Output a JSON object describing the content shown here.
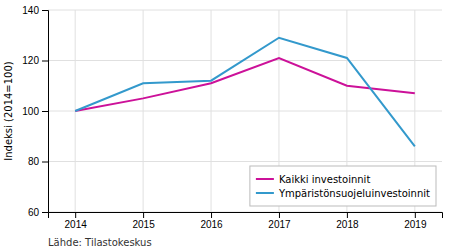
{
  "chart_data": {
    "type": "line",
    "ylabel": "Indeksi (2014=100)",
    "annotations": [
      "Lähde: Tilastokeskus"
    ],
    "x": [
      2014,
      2015,
      2016,
      2017,
      2018,
      2019
    ],
    "series": [
      {
        "name": "Kaikki investoinnit",
        "color": "#cc1199",
        "values": [
          100,
          105,
          111,
          121,
          110,
          107
        ]
      },
      {
        "name": "Ympäristönsuojeluinvestoinnit",
        "color": "#3399cc",
        "values": [
          100,
          111,
          112,
          129,
          121,
          86
        ]
      }
    ],
    "xlim": [
      2013.6,
      2019.4
    ],
    "xticks": [
      2014,
      2015,
      2016,
      2017,
      2018,
      2019
    ],
    "ylim": [
      60,
      140
    ],
    "yticks": [
      60,
      80,
      100,
      120,
      140
    ],
    "grid": true,
    "legend": "lower right"
  }
}
